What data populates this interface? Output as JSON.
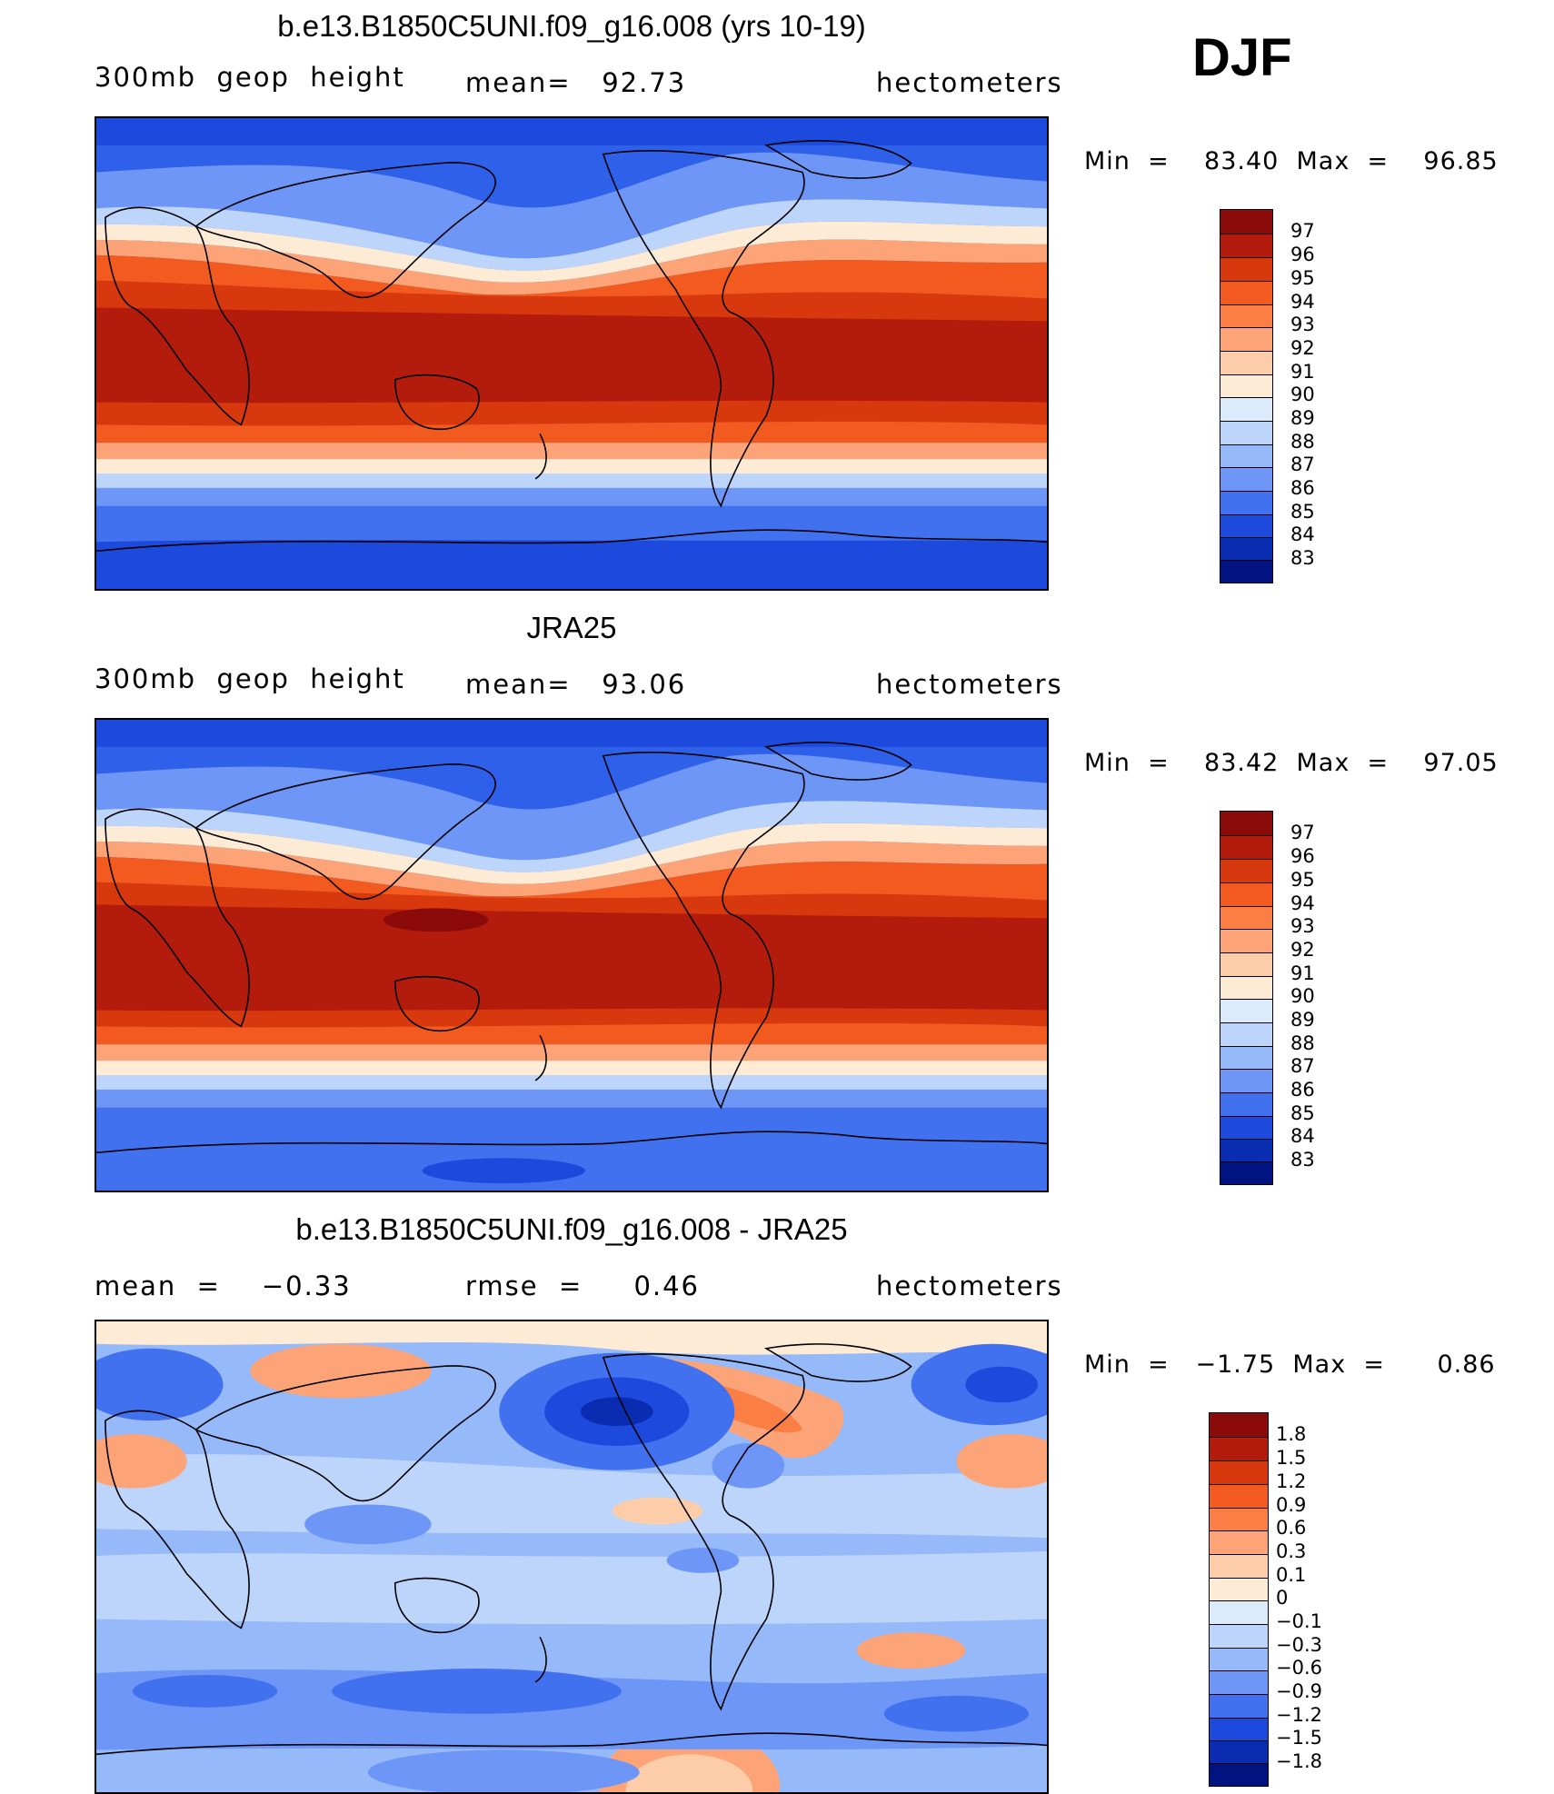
{
  "season_label": "DJF",
  "panels": [
    {
      "title": "b.e13.B1850C5UNI.f09_g16.008 (yrs 10-19)",
      "left_label": "300mb  geop  height",
      "center_label": "mean=   92.73",
      "right_label": "hectometers",
      "minmax": "Min  =    83.40  Max  =    96.85",
      "colorbar": {
        "labels": [
          "97",
          "96",
          "95",
          "94",
          "93",
          "92",
          "91",
          "90",
          "89",
          "88",
          "87",
          "86",
          "85",
          "84",
          "83"
        ],
        "colors": [
          "#8b0a0a",
          "#b31c0c",
          "#d8380d",
          "#f25a1f",
          "#fb7e45",
          "#fca478",
          "#fdcca9",
          "#fdebd6",
          "#dcebfb",
          "#bdd5fb",
          "#96b9fa",
          "#6d96f6",
          "#4271f0",
          "#1d49dc",
          "#0a2cb0",
          "#001380"
        ]
      }
    },
    {
      "title": "JRA25",
      "left_label": "300mb  geop  height",
      "center_label": "mean=   93.06",
      "right_label": "hectometers",
      "minmax": "Min  =    83.42  Max  =    97.05",
      "colorbar": {
        "labels": [
          "97",
          "96",
          "95",
          "94",
          "93",
          "92",
          "91",
          "90",
          "89",
          "88",
          "87",
          "86",
          "85",
          "84",
          "83"
        ],
        "colors": [
          "#8b0a0a",
          "#b31c0c",
          "#d8380d",
          "#f25a1f",
          "#fb7e45",
          "#fca478",
          "#fdcca9",
          "#fdebd6",
          "#dcebfb",
          "#bdd5fb",
          "#96b9fa",
          "#6d96f6",
          "#4271f0",
          "#1d49dc",
          "#0a2cb0",
          "#001380"
        ]
      }
    },
    {
      "title": "b.e13.B1850C5UNI.f09_g16.008 - JRA25",
      "left_label": "mean  =    −0.33",
      "center_label": "rmse  =     0.46",
      "right_label": "hectometers",
      "minmax": "Min  =   −1.75  Max  =      0.86",
      "colorbar": {
        "labels": [
          "1.8",
          "1.5",
          "1.2",
          "0.9",
          "0.6",
          "0.3",
          "0.1",
          "0",
          "−0.1",
          "−0.3",
          "−0.6",
          "−0.9",
          "−1.2",
          "−1.5",
          "−1.8"
        ],
        "colors": [
          "#8b0a0a",
          "#b31c0c",
          "#d8380d",
          "#f25a1f",
          "#fb7e45",
          "#fca478",
          "#fdcca9",
          "#fdebd6",
          "#dcebfb",
          "#bdd5fb",
          "#96b9fa",
          "#6d96f6",
          "#4271f0",
          "#1d49dc",
          "#0a2cb0",
          "#001380"
        ]
      }
    }
  ]
}
